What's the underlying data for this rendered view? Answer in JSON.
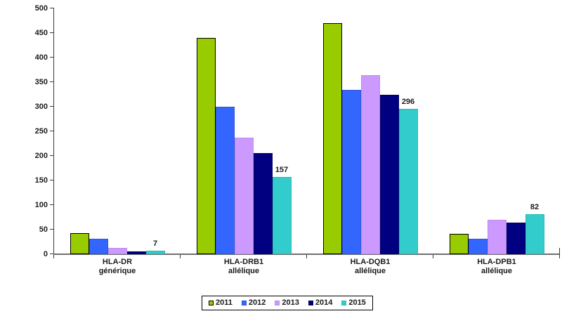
{
  "chart_data": {
    "type": "bar",
    "title": "",
    "xlabel": "",
    "ylabel": "",
    "ylim": [
      0,
      500
    ],
    "y_axis": {
      "min": 0,
      "max": 500,
      "step": 50
    },
    "grid": false,
    "legend_position": "bottom",
    "categories": [
      {
        "line1": "HLA-DR",
        "line2": "générique"
      },
      {
        "line1": "HLA-DRB1",
        "line2": "allélique"
      },
      {
        "line1": "HLA-DQB1",
        "line2": "allélique"
      },
      {
        "line1": "HLA-DPB1",
        "line2": "allélique"
      }
    ],
    "series": [
      {
        "name": "2011",
        "color": "#99CC00",
        "border": "#000000",
        "values": [
          43,
          440,
          470,
          42
        ],
        "show_labels": false
      },
      {
        "name": "2012",
        "color": "#3366FF",
        "border": "#2E55D8",
        "values": [
          32,
          300,
          334,
          32
        ],
        "show_labels": false
      },
      {
        "name": "2013",
        "color": "#CC99FF",
        "border": "#BE8BF0",
        "values": [
          13,
          237,
          365,
          70
        ],
        "show_labels": false
      },
      {
        "name": "2014",
        "color": "#000080",
        "border": "#000066",
        "values": [
          5,
          205,
          324,
          64
        ],
        "show_labels": false
      },
      {
        "name": "2015",
        "color": "#33CCCC",
        "border": "#2CB8B8",
        "values": [
          7,
          157,
          296,
          82
        ],
        "show_labels": true
      }
    ],
    "data_labels": {
      "series": "2015",
      "values": [
        "7",
        "157",
        "296",
        "82"
      ]
    },
    "legend": {
      "items": [
        "2011",
        "2012",
        "2013",
        "2014",
        "2015"
      ]
    }
  }
}
